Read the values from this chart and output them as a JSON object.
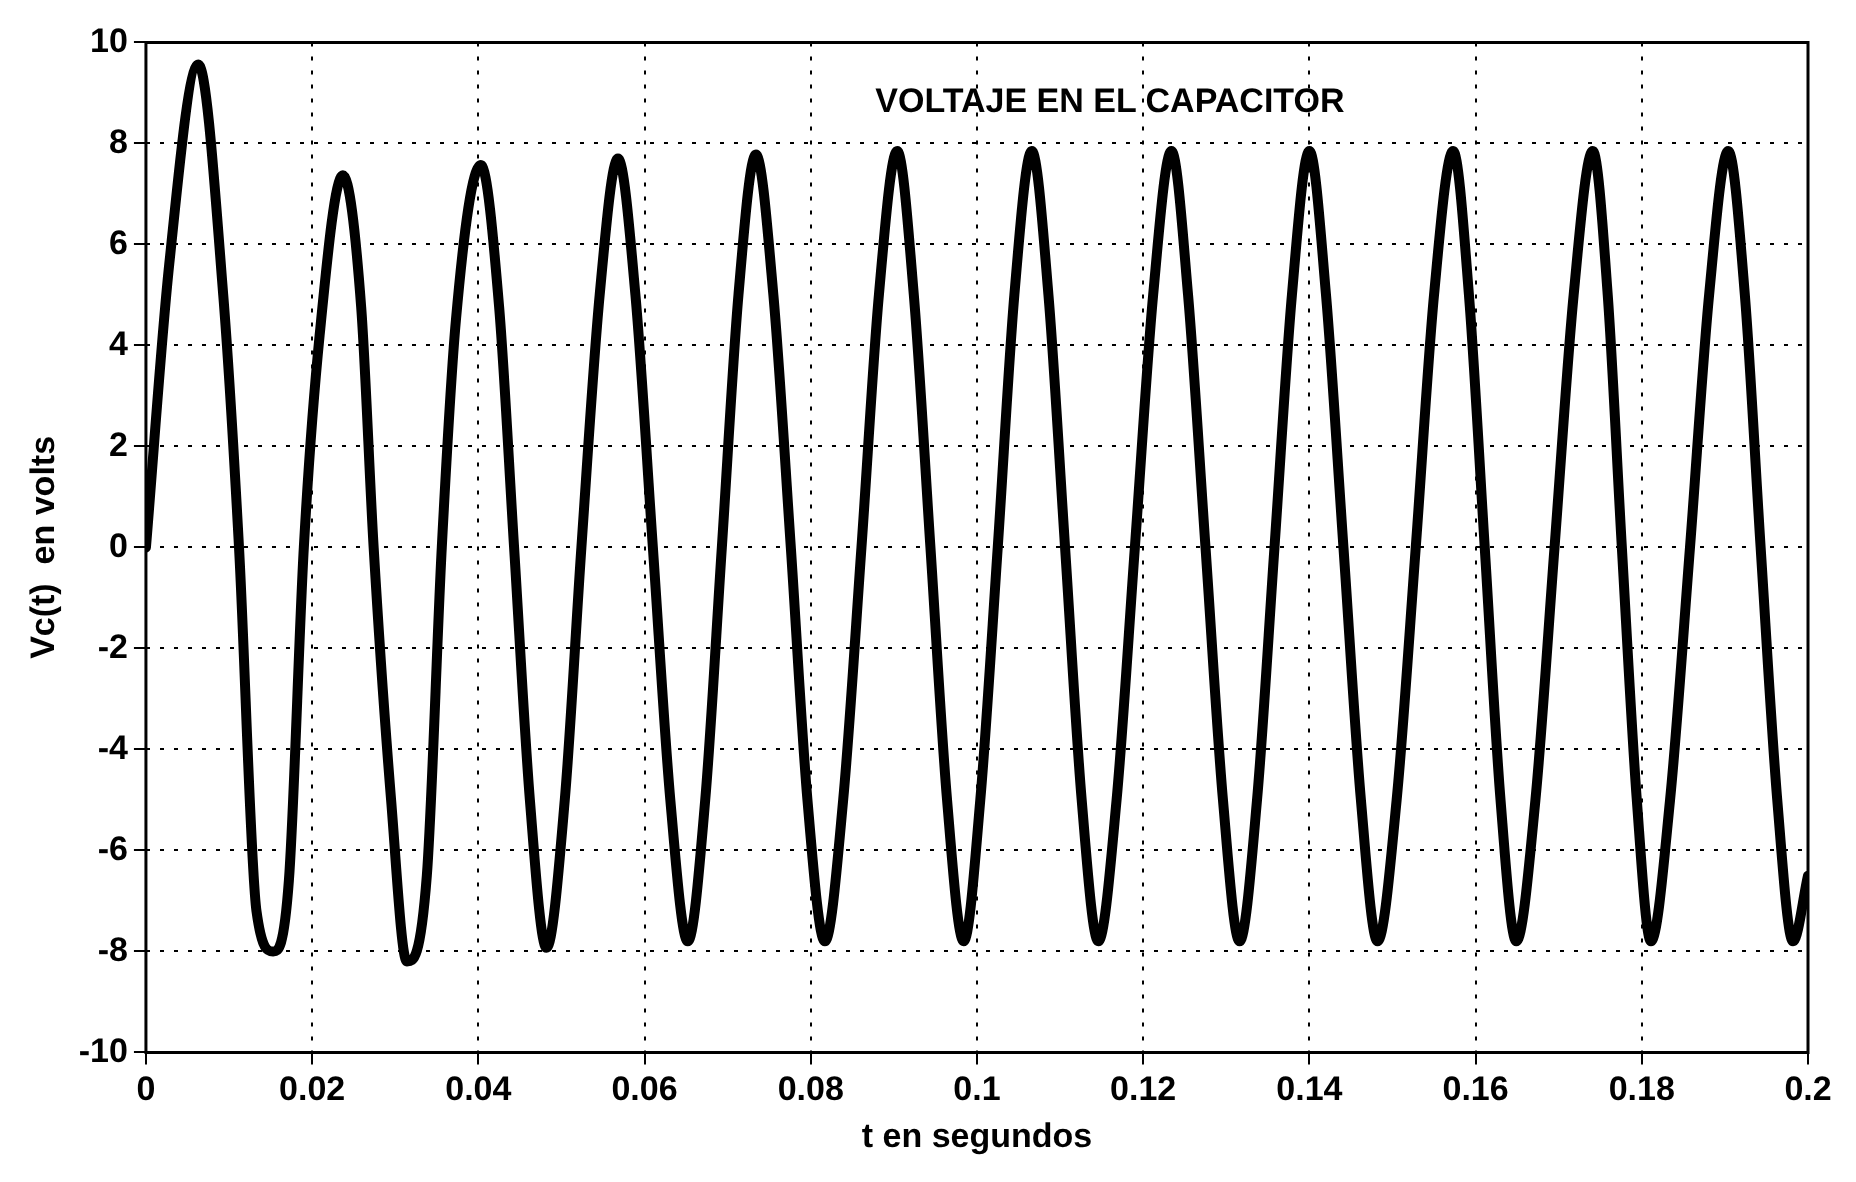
{
  "chart_data": {
    "type": "line",
    "title": "VOLTAJE EN EL CAPACITOR",
    "xlabel": "t en segundos",
    "ylabel": "Vc(t)  en volts",
    "xlim": [
      0,
      0.2
    ],
    "xticks": [
      0,
      0.02,
      0.04,
      0.06,
      0.08,
      0.1,
      0.12,
      0.14,
      0.16,
      0.18,
      0.2
    ],
    "ylim": [
      -10,
      10
    ],
    "yticks": [
      -10,
      -8,
      -6,
      -4,
      -2,
      0,
      2,
      4,
      6,
      8,
      10
    ],
    "grid": true,
    "legend": false,
    "marker": "none",
    "line_style": "solid",
    "series": [
      {
        "color": "#000000",
        "x": [
          0,
          0.0028,
          0.0063,
          0.0093,
          0.0112,
          0.0133,
          0.0153,
          0.0172,
          0.019,
          0.0209,
          0.0237,
          0.0259,
          0.0274,
          0.0295,
          0.0314,
          0.0338,
          0.0356,
          0.0373,
          0.0403,
          0.0425,
          0.0443,
          0.0462,
          0.0482,
          0.0504,
          0.0524,
          0.0546,
          0.0568,
          0.0589,
          0.061,
          0.0631,
          0.0652,
          0.0673,
          0.0693,
          0.0713,
          0.0734,
          0.0755,
          0.0776,
          0.0796,
          0.0817,
          0.0839,
          0.0861,
          0.0882,
          0.0904,
          0.0924,
          0.0944,
          0.0964,
          0.0984,
          0.1004,
          0.1025,
          0.1045,
          0.1066,
          0.1086,
          0.1106,
          0.1126,
          0.1146,
          0.1168,
          0.119,
          0.1212,
          0.1234,
          0.1254,
          0.1275,
          0.1296,
          0.1316,
          0.1337,
          0.1358,
          0.1379,
          0.14,
          0.142,
          0.1441,
          0.1462,
          0.1482,
          0.1505,
          0.1528,
          0.155,
          0.1573,
          0.1592,
          0.1611,
          0.163,
          0.1649,
          0.1672,
          0.1695,
          0.1718,
          0.1741,
          0.1759,
          0.1776,
          0.1794,
          0.1811,
          0.1834,
          0.1858,
          0.1881,
          0.1904,
          0.1924,
          0.1943,
          0.1963,
          0.1982,
          0.2
        ],
        "values": [
          0,
          5.6,
          9.56,
          5,
          0,
          -7.2,
          -8,
          -6.6,
          0,
          4.2,
          7.37,
          4.76,
          0,
          -5,
          -8.2,
          -6.5,
          0,
          4.5,
          7.57,
          4.76,
          0,
          -5,
          -7.93,
          -5,
          0,
          5,
          7.7,
          5,
          0,
          -5,
          -7.8,
          -5,
          0,
          5,
          7.78,
          5,
          0,
          -5,
          -7.8,
          -5,
          0,
          5,
          7.85,
          5,
          0,
          -5,
          -7.8,
          -5,
          0,
          5,
          7.85,
          5,
          0,
          -5,
          -7.8,
          -5,
          0,
          5,
          7.85,
          5,
          0,
          -5,
          -7.8,
          -5,
          0,
          5,
          7.85,
          5,
          0,
          -5,
          -7.8,
          -5,
          0,
          5,
          7.85,
          5,
          0,
          -5,
          -7.8,
          -5,
          0,
          5,
          7.85,
          5,
          0,
          -5,
          -7.8,
          -5,
          0,
          5,
          7.85,
          5,
          0,
          -5,
          -7.8,
          -6.5
        ]
      }
    ]
  }
}
